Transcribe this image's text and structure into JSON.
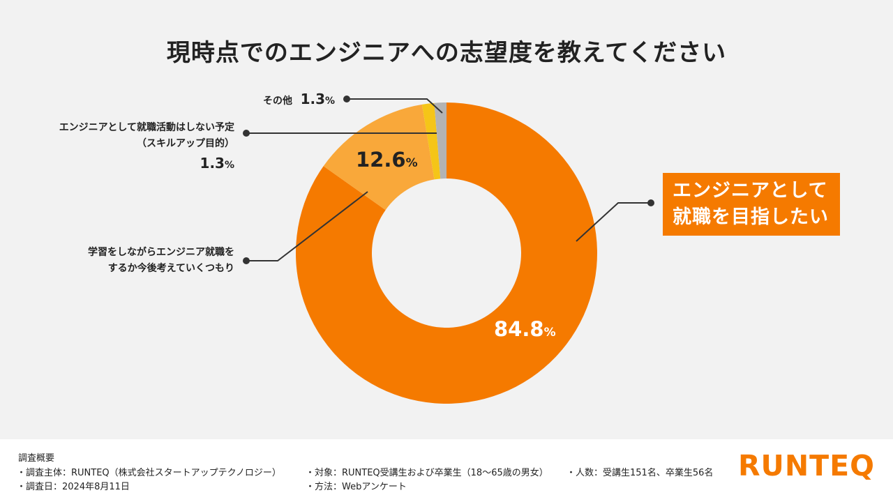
{
  "title": "現時点でのエンジニアへの志望度を教えてください",
  "chart_data": {
    "type": "pie",
    "title": "現時点でのエンジニアへの志望度を教えてください",
    "slices": [
      {
        "label": "エンジニアとして就職を目指したい",
        "value": 84.8,
        "color": "#f57a00"
      },
      {
        "label": "学習をしながらエンジニア就職をするか今後考えていくつもり",
        "value": 12.6,
        "color": "#f9a83a"
      },
      {
        "label": "エンジニアとして就職活動はしない予定（スキルアップ目的）",
        "value": 1.3,
        "color": "#f5c518"
      },
      {
        "label": "その他",
        "value": 1.3,
        "color": "#b3b3b3"
      }
    ]
  },
  "labels": {
    "main_value": "84.8",
    "learn_value": "12.6",
    "pct_sign": "%",
    "callout_line1": "エンジニアとして",
    "callout_line2": "就職を目指したい",
    "learn_line1": "学習をしながらエンジニア就職を",
    "learn_line2": "するか今後考えていくつもり",
    "skill_line1": "エンジニアとして就職活動はしない予定",
    "skill_line2": "（スキルアップ目的）",
    "skill_value": "1.3",
    "other_label": "その他",
    "other_value": "1.3"
  },
  "footer": {
    "heading": "調査概要",
    "sponsor": "・調査主体：RUNTEQ（株式会社スタートアップテクノロジー）",
    "target": "・対象：RUNTEQ受講生および卒業生（18〜65歳の男女）",
    "count": "・人数：受講生151名、卒業生56名",
    "date": "・調査日：2024年8月11日",
    "method": "・方法：Webアンケート",
    "logo": "RUNTEQ"
  }
}
